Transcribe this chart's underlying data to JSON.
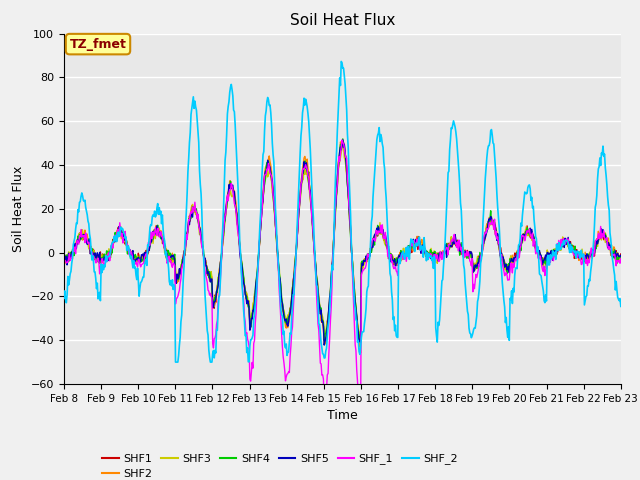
{
  "title": "Soil Heat Flux",
  "xlabel": "Time",
  "ylabel": "Soil Heat Flux",
  "ylim": [
    -60,
    100
  ],
  "num_days": 15,
  "points_per_day": 48,
  "series_colors": {
    "SHF1": "#cc0000",
    "SHF2": "#ff8800",
    "SHF3": "#cccc00",
    "SHF4": "#00cc00",
    "SHF5": "#0000bb",
    "SHF_1": "#ff00ff",
    "SHF_2": "#00ccff"
  },
  "series_linewidths": {
    "SHF1": 1.0,
    "SHF2": 1.0,
    "SHF3": 1.0,
    "SHF4": 1.0,
    "SHF5": 1.0,
    "SHF_1": 1.0,
    "SHF_2": 1.2
  },
  "annotation_text": "TZ_fmet",
  "annotation_color": "#8B0000",
  "annotation_bg": "#ffff99",
  "annotation_border": "#cc8800",
  "tick_labels": [
    "Feb 8",
    "Feb 9",
    "Feb 10",
    "Feb 11",
    "Feb 12",
    "Feb 13",
    "Feb 14",
    "Feb 15",
    "Feb 16",
    "Feb 17",
    "Feb 18",
    "Feb 19",
    "Feb 20",
    "Feb 21",
    "Feb 22",
    "Feb 23"
  ],
  "yticks": [
    -60,
    -40,
    -20,
    0,
    20,
    40,
    60,
    80,
    100
  ],
  "background_color": "#e8e8e8",
  "grid_color": "#ffffff"
}
